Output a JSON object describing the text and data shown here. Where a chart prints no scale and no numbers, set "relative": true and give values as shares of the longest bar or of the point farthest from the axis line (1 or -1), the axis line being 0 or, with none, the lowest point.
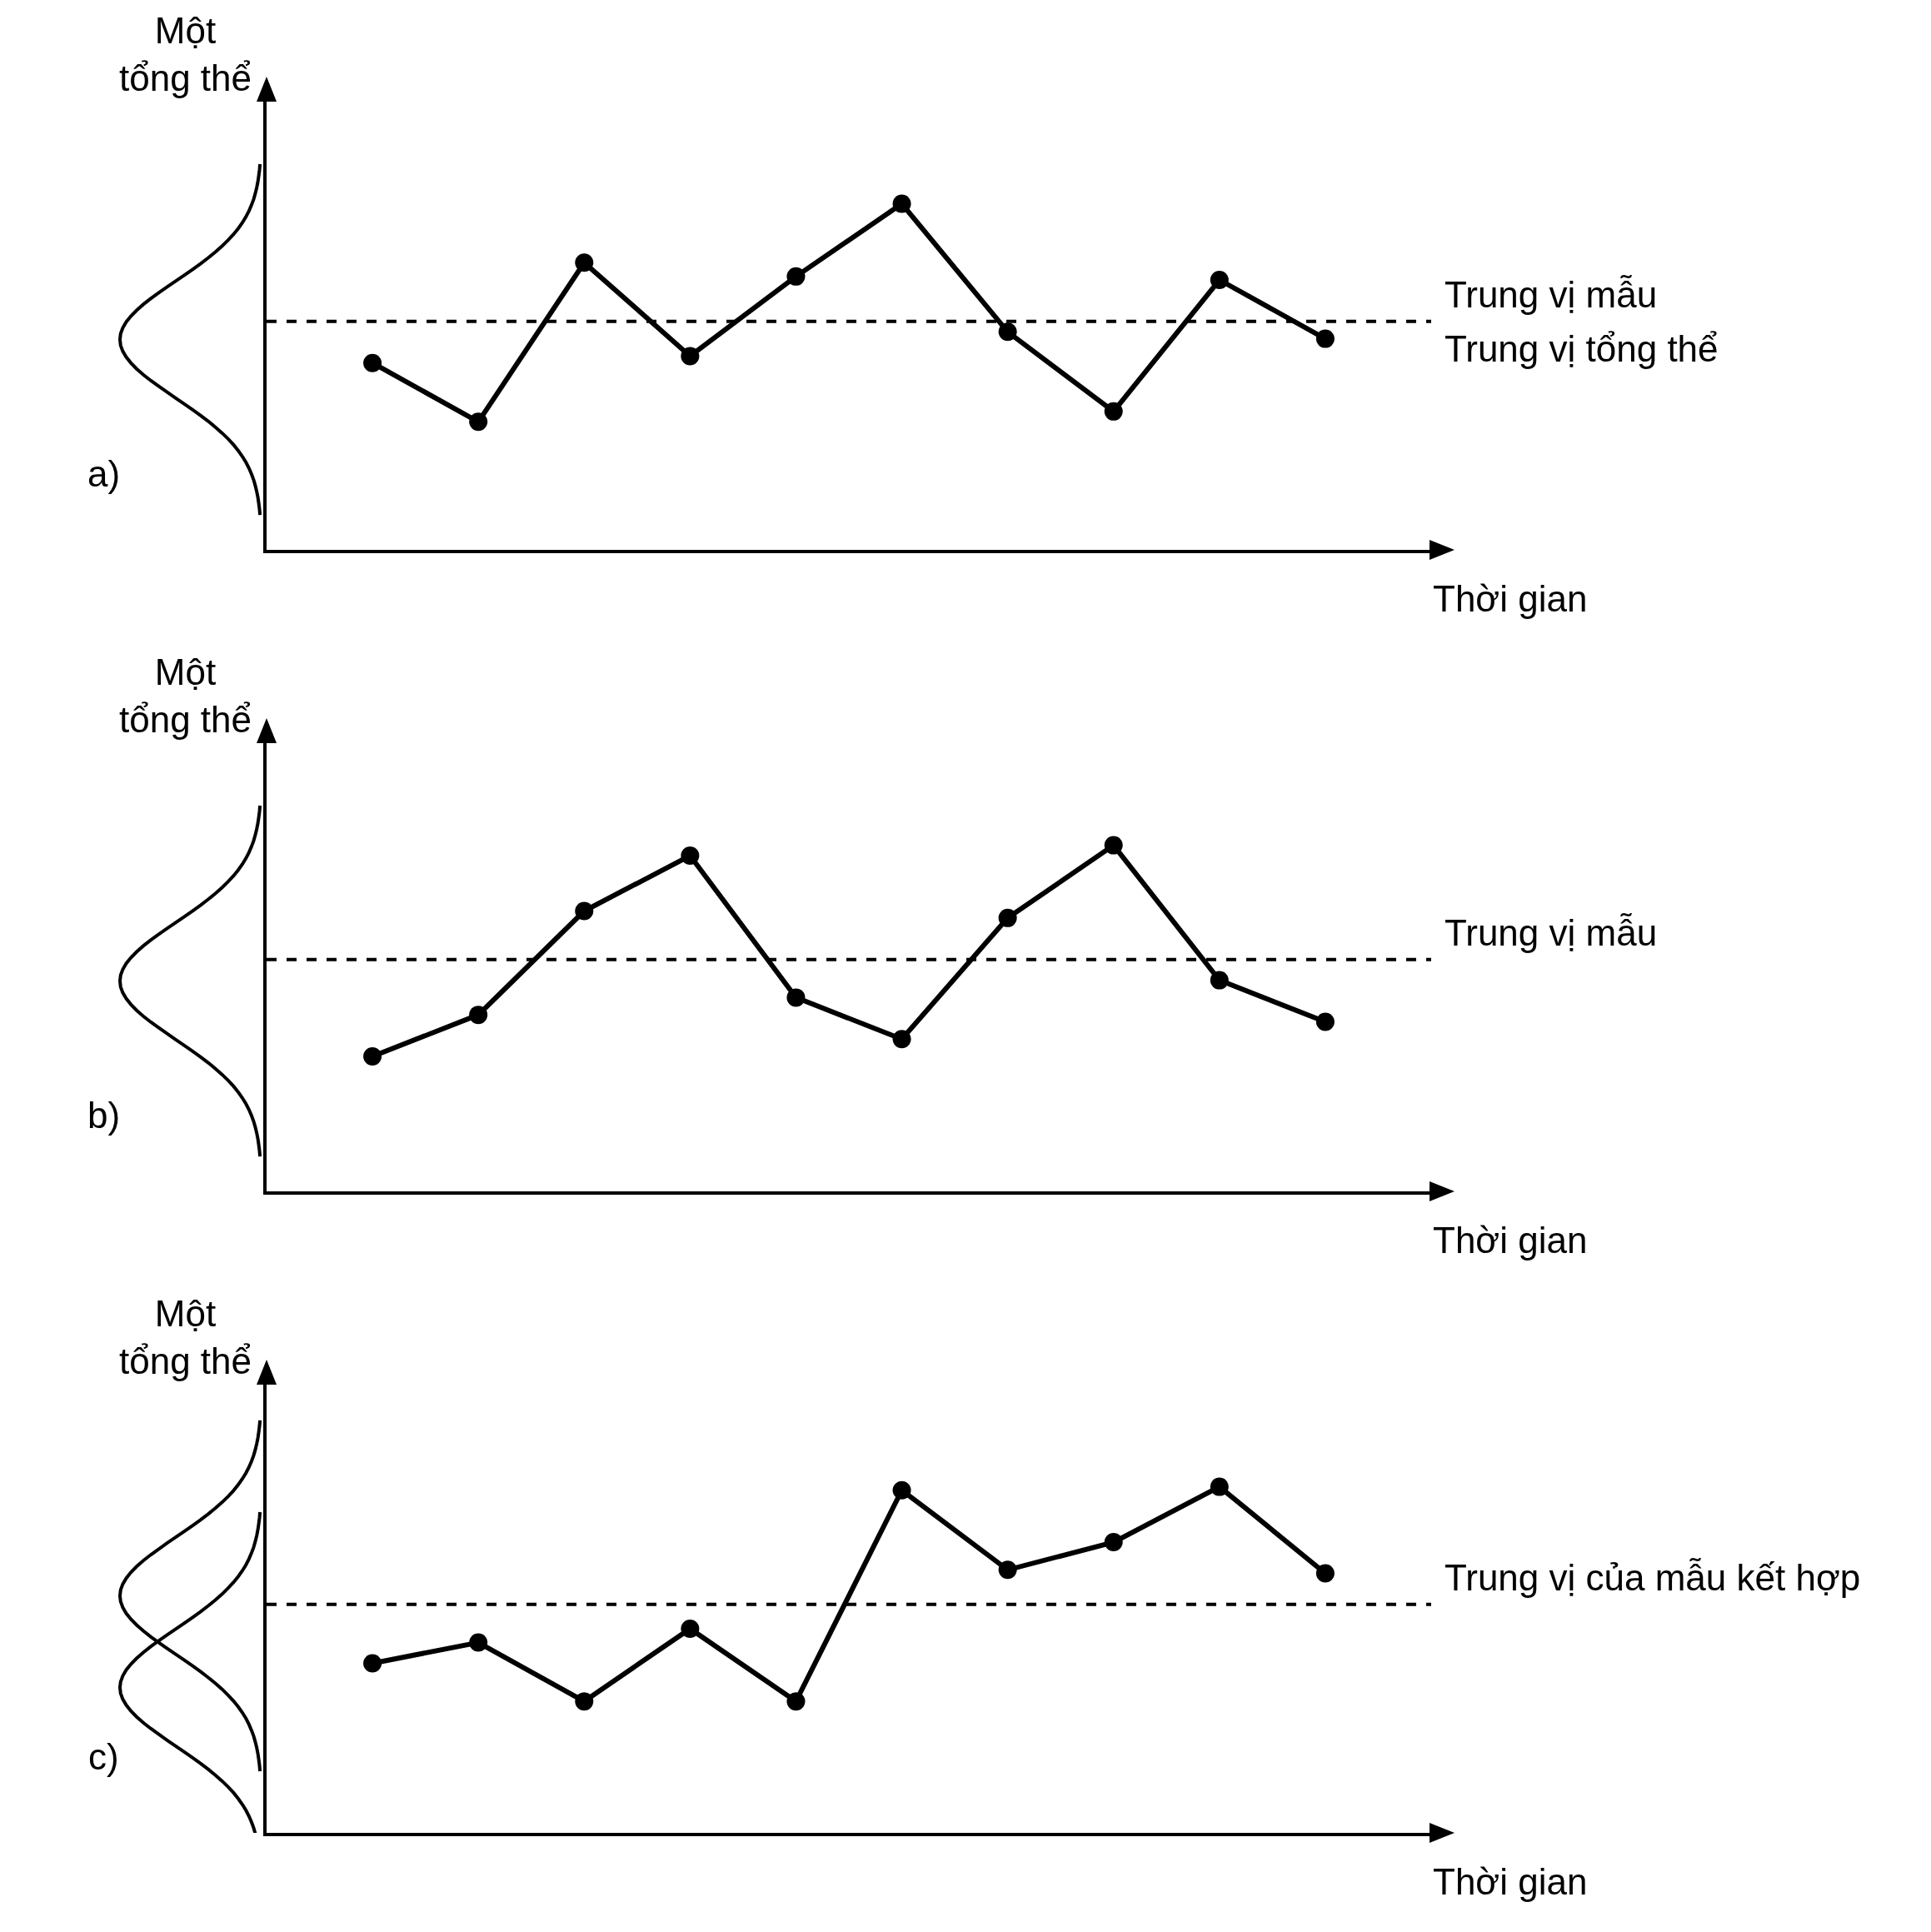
{
  "chart_data": [
    {
      "type": "line",
      "relative": true,
      "ylabel": "Một tổng thể",
      "xlabel": "Thời gian",
      "categories": [
        null,
        null,
        null,
        null,
        null,
        null,
        null,
        null,
        null,
        null
      ],
      "marker": "circle",
      "line_style": "solid",
      "series": [
        {
          "color": "#000000",
          "values": [
            0.54,
            0.37,
            0.83,
            0.56,
            0.79,
            1,
            0.63,
            0.4,
            0.78,
            0.61
          ]
        }
      ],
      "ref_lines": [
        {
          "axis": "y",
          "value": 0.66,
          "label": "Trung vị mẫu",
          "color": "#000000",
          "line_style": "dashed"
        }
      ],
      "annotations": [
        "a)",
        "Trung vị tổng thể"
      ]
    },
    {
      "type": "line",
      "relative": true,
      "ylabel": "Một tổng thể",
      "xlabel": "Thời gian",
      "categories": [
        null,
        null,
        null,
        null,
        null,
        null,
        null,
        null,
        null,
        null
      ],
      "marker": "circle",
      "line_style": "solid",
      "series": [
        {
          "color": "#000000",
          "values": [
            0.39,
            0.51,
            0.81,
            0.97,
            0.56,
            0.44,
            0.79,
            1,
            0.61,
            0.49
          ]
        }
      ],
      "ref_lines": [
        {
          "axis": "y",
          "value": 0.67,
          "label": "Trung vị mẫu",
          "color": "#000000",
          "line_style": "dashed"
        }
      ],
      "annotations": [
        "b)"
      ]
    },
    {
      "type": "line",
      "relative": true,
      "ylabel": "Một tổng thể",
      "xlabel": "Thời gian",
      "categories": [
        null,
        null,
        null,
        null,
        null,
        null,
        null,
        null,
        null,
        null
      ],
      "marker": "circle",
      "line_style": "solid",
      "series": [
        {
          "color": "#000000",
          "values": [
            0.49,
            0.55,
            0.38,
            0.59,
            0.38,
            0.99,
            0.76,
            0.84,
            1,
            0.75
          ]
        }
      ],
      "ref_lines": [
        {
          "axis": "y",
          "value": 0.66,
          "label": "Trung vị của mẫu kết hợp",
          "color": "#000000",
          "line_style": "dashed"
        }
      ],
      "annotations": [
        "c)"
      ]
    }
  ]
}
